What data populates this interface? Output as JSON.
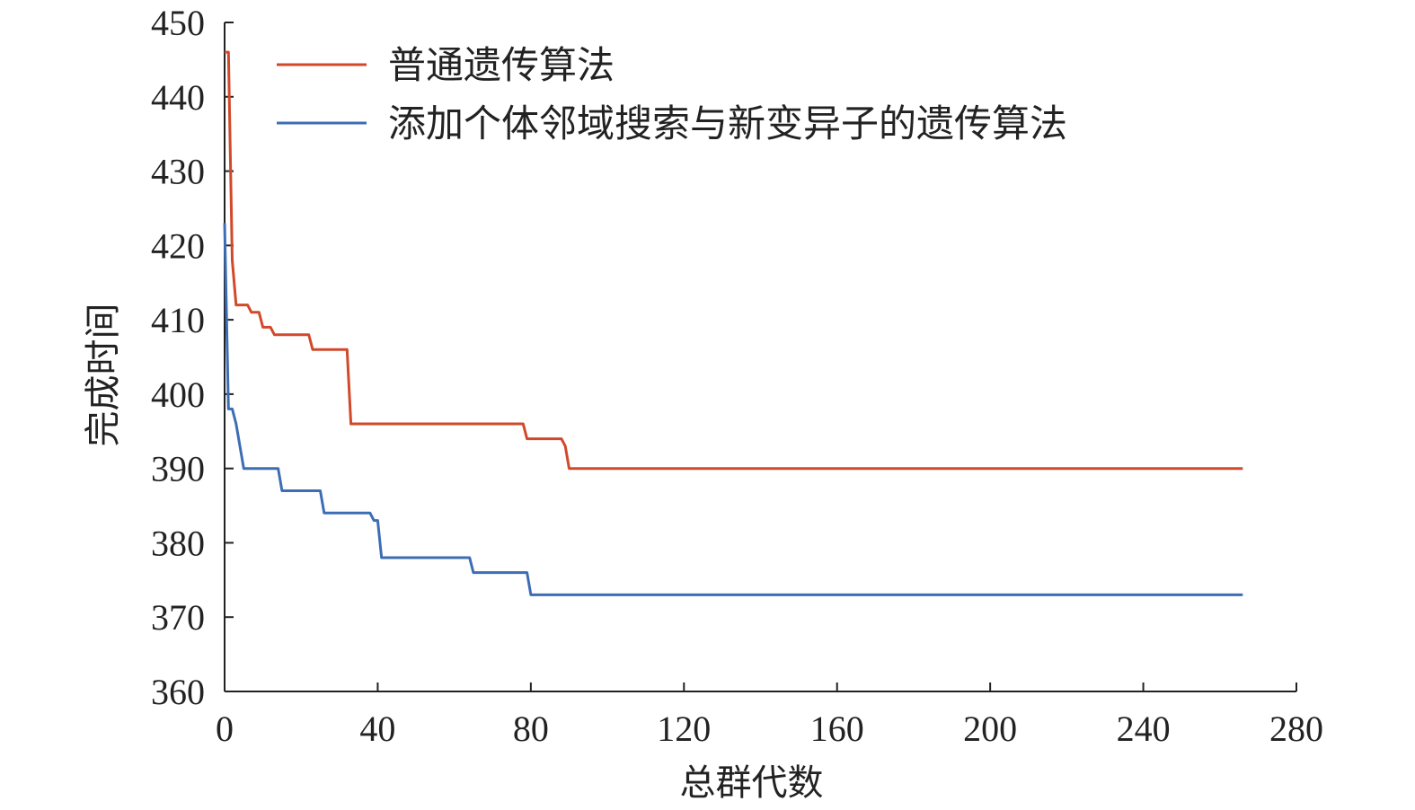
{
  "chart_data": {
    "type": "line",
    "title": "",
    "xlabel": "总群代数",
    "ylabel": "完成时间",
    "xlim": [
      0,
      280
    ],
    "ylim": [
      360,
      450
    ],
    "xticks": [
      0,
      40,
      80,
      120,
      160,
      200,
      240,
      280
    ],
    "yticks": [
      360,
      370,
      380,
      390,
      400,
      410,
      420,
      430,
      440,
      450
    ],
    "grid": false,
    "legend_position": "top",
    "series": [
      {
        "name": "普通遗传算法",
        "color": "#d1492a",
        "points": [
          [
            0,
            446
          ],
          [
            1,
            446
          ],
          [
            2,
            418
          ],
          [
            3,
            412
          ],
          [
            6,
            412
          ],
          [
            7,
            411
          ],
          [
            9,
            411
          ],
          [
            10,
            409
          ],
          [
            12,
            409
          ],
          [
            13,
            408
          ],
          [
            22,
            408
          ],
          [
            23,
            406
          ],
          [
            32,
            406
          ],
          [
            33,
            396
          ],
          [
            78,
            396
          ],
          [
            79,
            394
          ],
          [
            88,
            394
          ],
          [
            89,
            393
          ],
          [
            90,
            390
          ],
          [
            266,
            390
          ]
        ]
      },
      {
        "name": "添加个体邻域搜索与新变异子的遗传算法",
        "color": "#3d6db5",
        "points": [
          [
            0,
            423
          ],
          [
            1,
            398
          ],
          [
            2,
            398
          ],
          [
            3,
            396
          ],
          [
            5,
            390
          ],
          [
            14,
            390
          ],
          [
            15,
            387
          ],
          [
            25,
            387
          ],
          [
            26,
            384
          ],
          [
            38,
            384
          ],
          [
            39,
            383
          ],
          [
            40,
            383
          ],
          [
            41,
            378
          ],
          [
            64,
            378
          ],
          [
            65,
            376
          ],
          [
            79,
            376
          ],
          [
            80,
            373
          ],
          [
            266,
            373
          ]
        ]
      }
    ]
  }
}
